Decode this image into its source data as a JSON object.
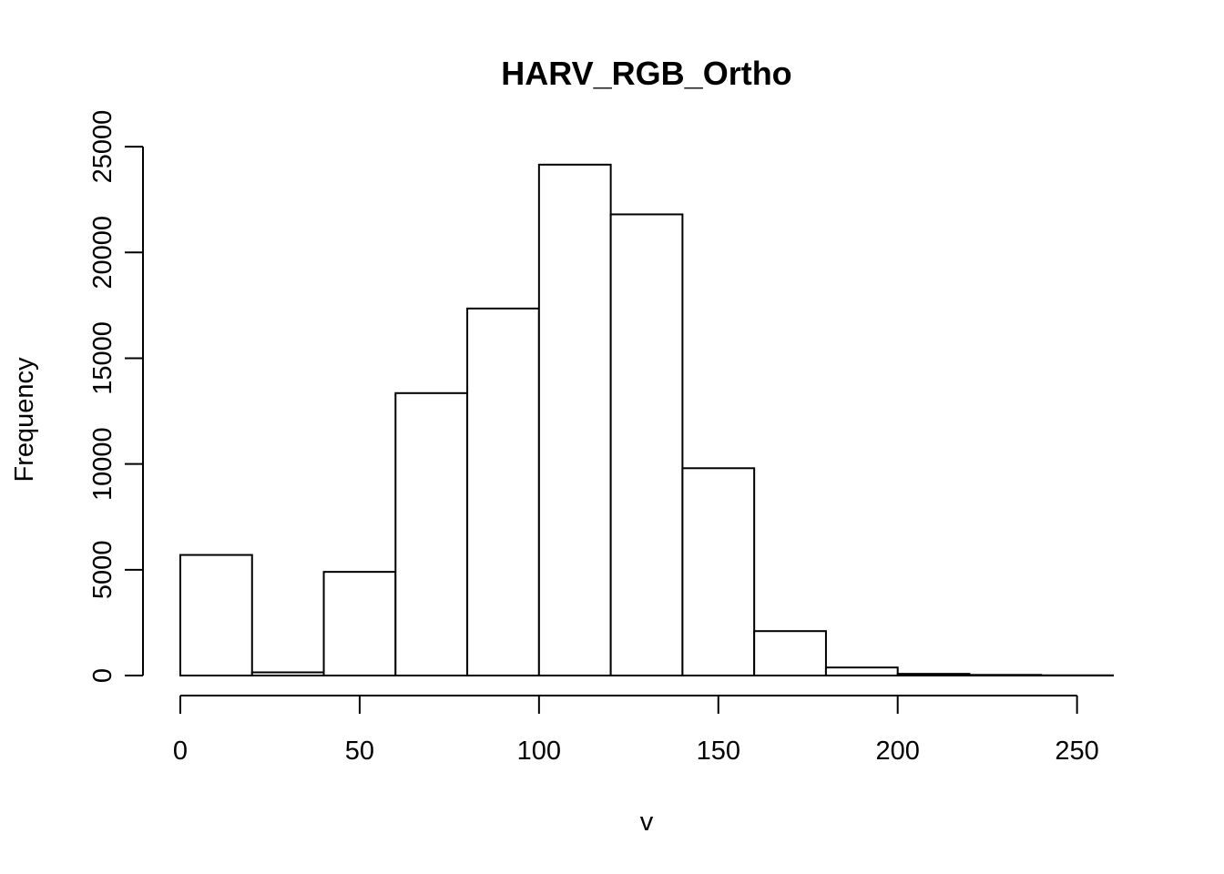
{
  "chart_data": {
    "type": "bar",
    "title": "HARV_RGB_Ortho",
    "xlabel": "v",
    "ylabel": "Frequency",
    "bin_edges": [
      0,
      20,
      40,
      60,
      80,
      100,
      120,
      140,
      160,
      180,
      200,
      220,
      240,
      260
    ],
    "values": [
      5700,
      150,
      4900,
      13350,
      17350,
      24150,
      21800,
      9800,
      2100,
      380,
      80,
      30,
      10
    ],
    "xlim": [
      0,
      260
    ],
    "ylim": [
      0,
      25000
    ],
    "x_ticks": [
      0,
      50,
      100,
      150,
      200,
      250
    ],
    "x_tick_labels": [
      "0",
      "50",
      "100",
      "150",
      "200",
      "250"
    ],
    "y_ticks": [
      0,
      5000,
      10000,
      15000,
      20000,
      25000
    ],
    "y_tick_labels": [
      "0",
      "5000",
      "10000",
      "15000",
      "20000",
      "25000"
    ],
    "grid": false,
    "legend": "none",
    "bar_fill": "#ffffff",
    "bar_stroke": "#000000"
  }
}
